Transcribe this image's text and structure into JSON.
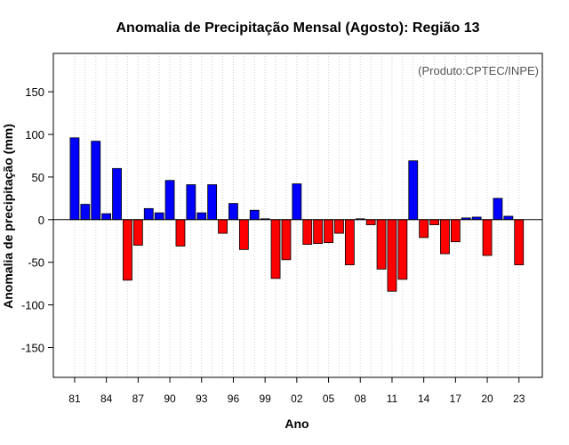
{
  "chart_data": {
    "type": "bar",
    "title": "Anomalia de Precipitação Mensal (Agosto): Região 13",
    "xlabel": "Ano",
    "ylabel": "Anomalia de precipitação (mm)",
    "credit": "(Produto:CPTEC/INPE)",
    "ylim": [
      -185,
      195
    ],
    "yticks": [
      -150,
      -100,
      -50,
      0,
      50,
      100,
      150
    ],
    "xtick_labels": [
      "81",
      "84",
      "87",
      "90",
      "93",
      "96",
      "99",
      "02",
      "05",
      "08",
      "11",
      "14",
      "17",
      "20",
      "23"
    ],
    "grid": true,
    "colors": {
      "positive": "#0000ff",
      "negative": "#ff0000",
      "grid": "#d3d3d3"
    },
    "categories": [
      "1981",
      "1982",
      "1983",
      "1984",
      "1985",
      "1986",
      "1987",
      "1988",
      "1989",
      "1990",
      "1991",
      "1992",
      "1993",
      "1994",
      "1995",
      "1996",
      "1997",
      "1998",
      "1999",
      "2000",
      "2001",
      "2002",
      "2003",
      "2004",
      "2005",
      "2006",
      "2007",
      "2008",
      "2009",
      "2010",
      "2011",
      "2012",
      "2013",
      "2014",
      "2015",
      "2016",
      "2017",
      "2018",
      "2019",
      "2020",
      "2021",
      "2022",
      "2023"
    ],
    "values": [
      96,
      18,
      92,
      7,
      60,
      -71,
      -30,
      13,
      8,
      46,
      -31,
      41,
      8,
      41,
      -16,
      19,
      -35,
      11,
      1,
      -69,
      -47,
      42,
      -29,
      -28,
      -27,
      -16,
      -53,
      1,
      -6,
      -58,
      -84,
      -70,
      69,
      -21,
      -6,
      -40,
      -26,
      2,
      3,
      -42,
      25,
      4,
      -53
    ]
  }
}
